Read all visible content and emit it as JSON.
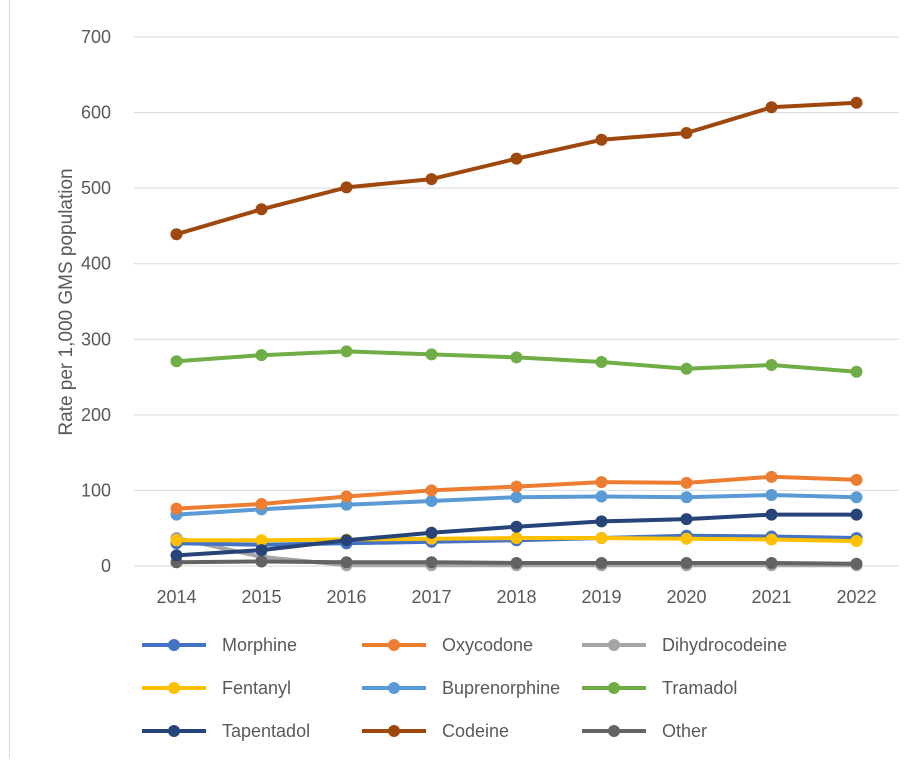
{
  "chart_data": {
    "type": "line",
    "title": "",
    "xlabel": "",
    "ylabel": "Rate per 1,000 GMS population",
    "ylim": [
      0,
      700
    ],
    "yticks": [
      0,
      100,
      200,
      300,
      400,
      500,
      600,
      700
    ],
    "grid": "horizontal",
    "legend_position": "bottom",
    "categories": [
      "2014",
      "2015",
      "2016",
      "2017",
      "2018",
      "2019",
      "2020",
      "2021",
      "2022"
    ],
    "series": [
      {
        "name": "Morphine",
        "color": "#4472c4",
        "values": [
          30,
          28,
          30,
          32,
          34,
          37,
          40,
          39,
          37
        ]
      },
      {
        "name": "Oxycodone",
        "color": "#ed7d31",
        "values": [
          76,
          82,
          92,
          100,
          105,
          111,
          110,
          118,
          114
        ]
      },
      {
        "name": "Dihydrocodeine",
        "color": "#a5a5a5",
        "values": [
          37,
          12,
          1,
          1,
          1,
          1,
          1,
          1,
          1
        ]
      },
      {
        "name": "Fentanyl",
        "color": "#ffc000",
        "values": [
          34,
          34,
          35,
          36,
          37,
          37,
          36,
          35,
          33
        ]
      },
      {
        "name": "Buprenorphine",
        "color": "#5b9bd5",
        "values": [
          68,
          75,
          81,
          86,
          91,
          92,
          91,
          94,
          91
        ]
      },
      {
        "name": "Tramadol",
        "color": "#70ad47",
        "values": [
          271,
          279,
          284,
          280,
          276,
          270,
          261,
          266,
          257
        ]
      },
      {
        "name": "Tapentadol",
        "color": "#264478",
        "values": [
          14,
          21,
          34,
          44,
          52,
          59,
          62,
          68,
          68
        ]
      },
      {
        "name": "Codeine",
        "color": "#9e480e",
        "values": [
          439,
          472,
          501,
          512,
          539,
          564,
          573,
          607,
          613
        ]
      },
      {
        "name": "Other",
        "color": "#636363",
        "values": [
          5,
          6,
          5,
          5,
          4,
          4,
          4,
          4,
          3
        ]
      }
    ]
  }
}
